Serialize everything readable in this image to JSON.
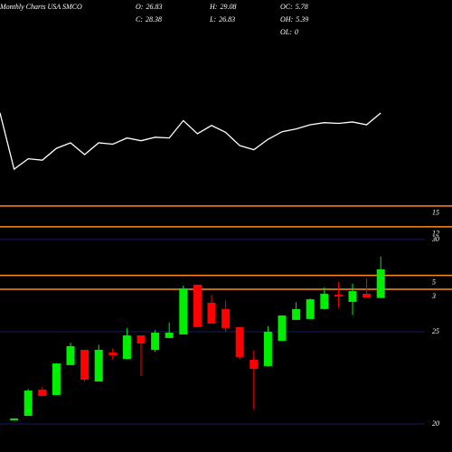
{
  "chart_data": {
    "type": "candlestick",
    "title": "Monthly Charts USA SMCO",
    "info": [
      {
        "label": "O:",
        "value": 26.83
      },
      {
        "label": "C:",
        "value": 28.38
      },
      {
        "label": "H:",
        "value": 29.08
      },
      {
        "label": "L:",
        "value": 26.83
      },
      {
        "label": "OC:",
        "value": 5.78
      },
      {
        "label": "OH:",
        "value": 5.39
      },
      {
        "label": "OL:",
        "value": 0
      }
    ],
    "open": [
      null,
      20.2,
      20.44,
      21.86,
      21.57,
      23.19,
      24.02,
      22.3,
      23.87,
      23.53,
      24.8,
      24.02,
      24.66,
      24.85,
      27.55,
      26.57,
      26.23,
      25.25,
      23.48,
      23.14,
      24.51,
      25.64,
      25.69,
      26.23,
      27.01,
      26.62,
      27.06,
      26.83
    ],
    "high": [
      null,
      20.3,
      21.9,
      22.0,
      23.3,
      24.4,
      24.02,
      24.3,
      24.1,
      25.2,
      24.8,
      25.1,
      25.5,
      27.5,
      27.55,
      27.0,
      26.7,
      25.25,
      24.0,
      25.3,
      25.9,
      26.6,
      26.8,
      27.4,
      27.7,
      27.6,
      27.9,
      29.08
    ],
    "low": [
      null,
      20.2,
      20.44,
      21.5,
      21.57,
      23.19,
      22.3,
      22.3,
      23.5,
      23.5,
      22.6,
      23.9,
      24.66,
      24.85,
      25.25,
      25.44,
      25.0,
      23.5,
      20.8,
      23.1,
      24.5,
      25.64,
      25.7,
      26.2,
      26.3,
      25.9,
      26.86,
      26.83
    ],
    "close": [
      null,
      20.3,
      21.81,
      21.52,
      23.28,
      24.22,
      22.4,
      24.02,
      23.73,
      24.8,
      24.36,
      24.95,
      24.95,
      27.35,
      25.25,
      25.44,
      25.2,
      23.63,
      22.99,
      25.0,
      25.88,
      26.23,
      26.76,
      27.06,
      26.91,
      27.2,
      26.86,
      28.38
    ],
    "up_color": "#00ee00",
    "down_color": "#ff0000",
    "ylim": [
      19.95,
      30.34
    ],
    "yticks": [
      30,
      25,
      20
    ],
    "grid": true,
    "grid_color": "#1a1a66",
    "line": {
      "color": "#ffffff",
      "axis": "y2",
      "values": [
        28.4,
        20.3,
        21.8,
        21.6,
        23.3,
        24.1,
        22.4,
        24.1,
        23.9,
        24.8,
        24.4,
        24.9,
        24.8,
        27.3,
        25.4,
        26.6,
        25.6,
        23.7,
        23.1,
        24.6,
        25.7,
        26.1,
        26.7,
        27.0,
        26.9,
        27.1,
        26.7,
        28.4
      ]
    },
    "y2lim": [
      1.7,
      32.3
    ],
    "y2ticks": [
      15,
      12,
      5,
      3
    ],
    "y2tick_color": "#ff8c1a"
  }
}
